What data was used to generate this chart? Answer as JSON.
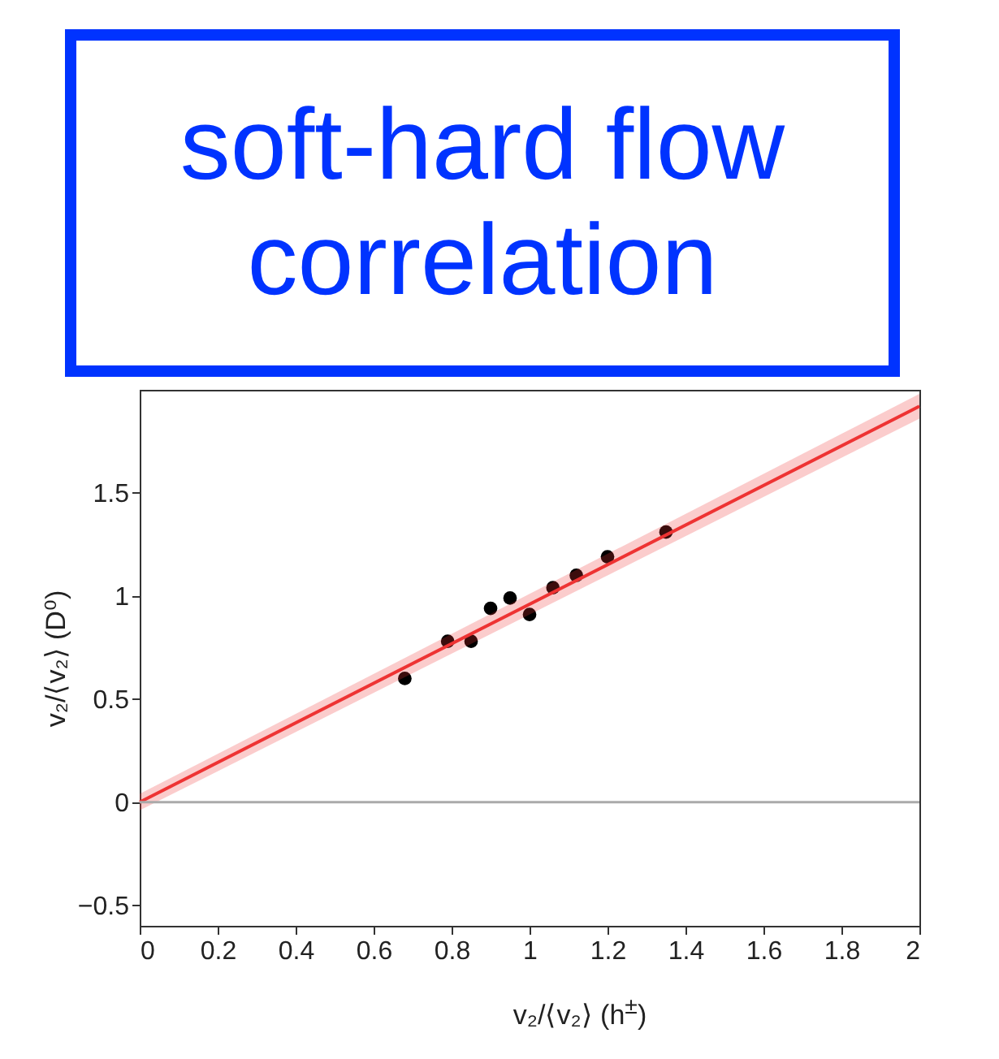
{
  "chart_data": {
    "type": "scatter",
    "title": "soft-hard flow correlation",
    "xlabel": "v₂/⟨v₂⟩ (h$^{±}$)",
    "ylabel": "v₂/⟨v₂⟩ (D⁰)",
    "x": [
      0.68,
      0.79,
      0.85,
      0.9,
      0.95,
      1.0,
      1.06,
      1.12,
      1.2,
      1.35
    ],
    "series": [
      {
        "type": "scatter",
        "color": "#000000",
        "marker": "circle",
        "values": [
          0.6,
          0.78,
          0.78,
          0.94,
          0.99,
          0.91,
          1.04,
          1.1,
          1.19,
          1.31
        ]
      },
      {
        "type": "line",
        "color": "#ee3333",
        "marker": "none",
        "x": [
          0,
          2
        ],
        "values": [
          0,
          1.92
        ],
        "lower": [
          -0.04,
          1.86
        ],
        "upper": [
          0.04,
          1.98
        ]
      }
    ],
    "xlim": [
      0,
      2
    ],
    "xticks": [
      0,
      0.2,
      0.4,
      0.6,
      0.8,
      1,
      1.2,
      1.4,
      1.6,
      1.8,
      2
    ],
    "ylim": [
      -0.6,
      2
    ],
    "yticks": [
      -0.5,
      0,
      0.5,
      1,
      1.5
    ],
    "ref_lines": [
      {
        "axis": "y",
        "value": 0,
        "color": "#aaaaaa"
      }
    ],
    "grid": false,
    "line_style": "solid"
  }
}
